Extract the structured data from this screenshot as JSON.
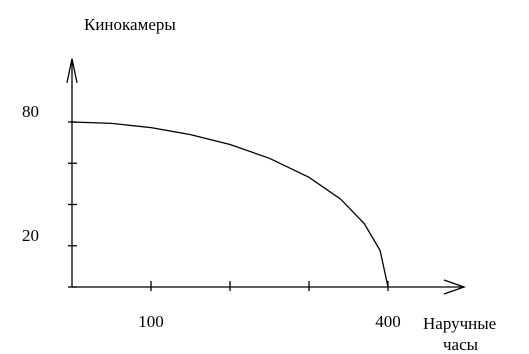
{
  "chart_data": {
    "type": "line",
    "ylabel": "Кинокамеры",
    "xlabel_lines": [
      "Наручные",
      "часы"
    ],
    "x_tick_values": [
      0,
      100,
      200,
      300,
      400
    ],
    "x_tick_labels": [
      {
        "value": 100,
        "label": "100"
      },
      {
        "value": 400,
        "label": "400"
      }
    ],
    "y_tick_values": [
      0,
      20,
      40,
      60,
      80
    ],
    "y_tick_labels": [
      {
        "value": 20,
        "label": "20"
      },
      {
        "value": 80,
        "label": "80"
      }
    ],
    "xlim": [
      0,
      500
    ],
    "ylim": [
      0,
      100
    ],
    "grid": false,
    "series": [
      {
        "color": "#000000",
        "points": [
          [
            0,
            80
          ],
          [
            50,
            79.3
          ],
          [
            100,
            77.3
          ],
          [
            150,
            73.9
          ],
          [
            200,
            69.1
          ],
          [
            250,
            62.4
          ],
          [
            300,
            53.2
          ],
          [
            340,
            42.6
          ],
          [
            370,
            30.7
          ],
          [
            390,
            17.7
          ],
          [
            400,
            0
          ]
        ]
      }
    ]
  }
}
